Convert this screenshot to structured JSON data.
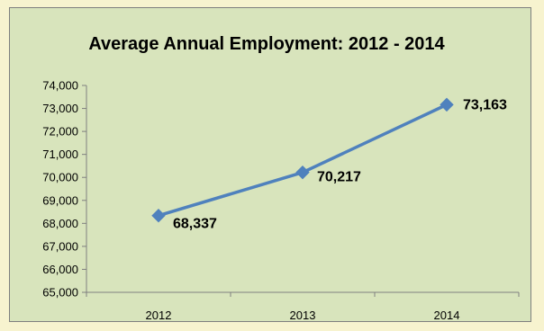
{
  "chart_data": {
    "type": "line",
    "title": "Average Annual Employment: 2012 - 2014",
    "xlabel": "",
    "ylabel": "",
    "categories": [
      "2012",
      "2013",
      "2014"
    ],
    "series": [
      {
        "values": [
          68337,
          70217,
          73163
        ],
        "color": "#4f81bd"
      }
    ],
    "data_labels": [
      "68,337",
      "70,217",
      "73,163"
    ],
    "ylim": [
      65000,
      74000
    ],
    "y_ticks": [
      "65,000",
      "66,000",
      "67,000",
      "68,000",
      "69,000",
      "70,000",
      "71,000",
      "72,000",
      "73,000",
      "74,000"
    ],
    "grid": false,
    "legend": "none",
    "marker": "diamond"
  },
  "colors": {
    "background": "#f7f3cf",
    "plot_area": "#d8e4bc",
    "frame_border": "#7f7f7f",
    "axis": "#7f7f7f",
    "series": "#4f81bd"
  }
}
